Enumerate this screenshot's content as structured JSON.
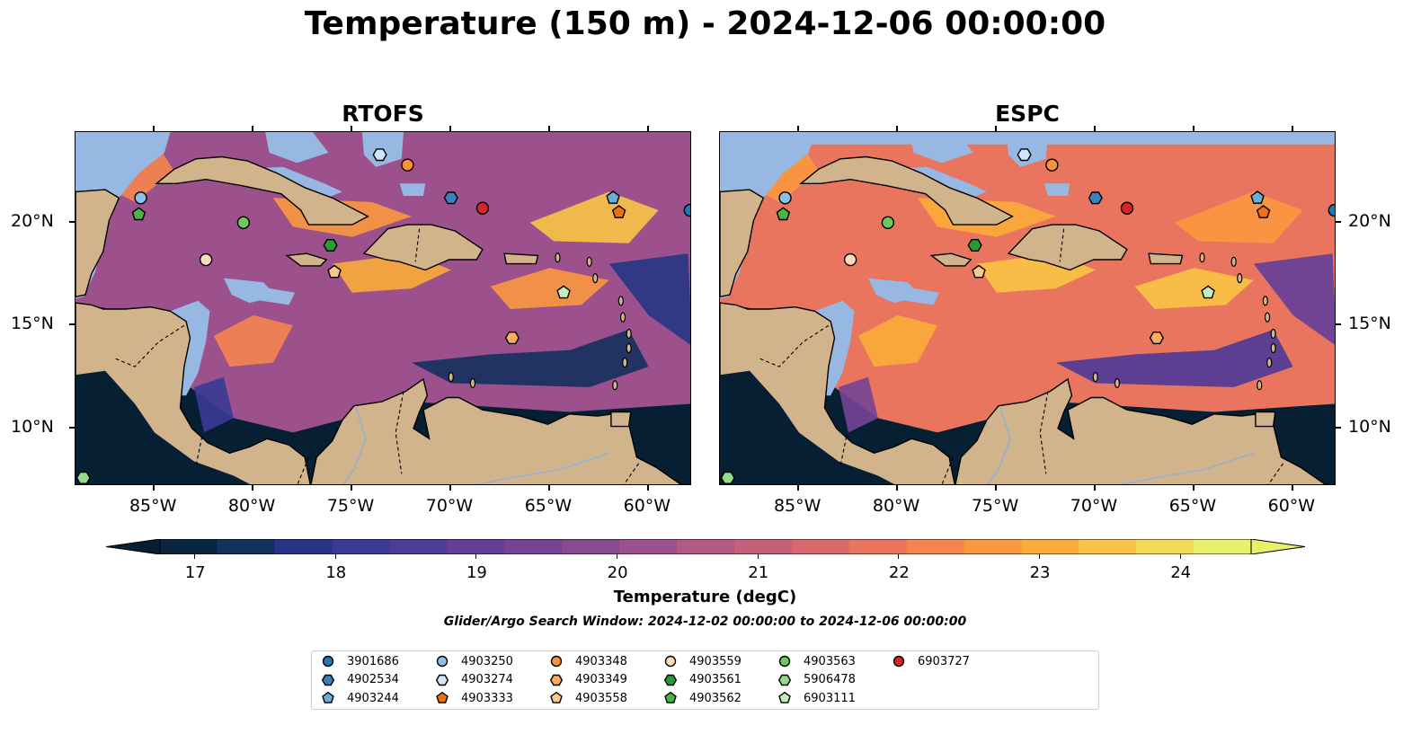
{
  "title": "Temperature (150 m) - 2024-12-06 00:00:00",
  "panels": [
    {
      "title": "RTOFS"
    },
    {
      "title": "ESPC"
    }
  ],
  "lon_labels": [
    "85°W",
    "80°W",
    "75°W",
    "70°W",
    "65°W",
    "60°W"
  ],
  "lat_labels": [
    "20°N",
    "15°N",
    "10°N"
  ],
  "colorbar": {
    "title": "Temperature (degC)",
    "tick_labels": [
      "17",
      "18",
      "19",
      "20",
      "21",
      "22",
      "23",
      "24"
    ],
    "min": 16.75,
    "max": 24.5,
    "extend": "both",
    "colors": [
      "#0a2540",
      "#14305e",
      "#263585",
      "#3a3a96",
      "#4d3a99",
      "#633f98",
      "#754496",
      "#884b92",
      "#9c518c",
      "#b25984",
      "#c6607a",
      "#d9686c",
      "#ea755f",
      "#f5854e",
      "#fa983f",
      "#fbac3a",
      "#f9c445",
      "#f3dc55",
      "#e9f06a"
    ]
  },
  "search_window": "Glider/Argo Search Window: 2024-12-02 00:00:00 to 2024-12-06 00:00:00",
  "legend": [
    {
      "label": "3901686",
      "marker": "circle",
      "color": "#1f77b4"
    },
    {
      "label": "4902534",
      "marker": "hexagon",
      "color": "#3a7fc0"
    },
    {
      "label": "4903244",
      "marker": "pentagon",
      "color": "#6aaed6"
    },
    {
      "label": "4903250",
      "marker": "circle",
      "color": "#8cc0e8"
    },
    {
      "label": "4903274",
      "marker": "hexagon",
      "color": "#cfe6f8"
    },
    {
      "label": "4903333",
      "marker": "pentagon",
      "color": "#f0700e"
    },
    {
      "label": "4903348",
      "marker": "circle",
      "color": "#f8923a"
    },
    {
      "label": "4903349",
      "marker": "hexagon",
      "color": "#fbab62"
    },
    {
      "label": "4903558",
      "marker": "pentagon",
      "color": "#fdc690"
    },
    {
      "label": "4903559",
      "marker": "circle",
      "color": "#fddcbc"
    },
    {
      "label": "4903561",
      "marker": "hexagon",
      "color": "#2a9a36"
    },
    {
      "label": "4903562",
      "marker": "pentagon",
      "color": "#49b443"
    },
    {
      "label": "4903563",
      "marker": "circle",
      "color": "#6dc862"
    },
    {
      "label": "5906478",
      "marker": "hexagon",
      "color": "#95d98a"
    },
    {
      "label": "6903111",
      "marker": "pentagon",
      "color": "#c4ecbd"
    },
    {
      "label": "6903727",
      "marker": "circle",
      "color": "#d62728"
    }
  ],
  "floats": [
    {
      "id": "4903250",
      "lon": -85.7,
      "lat": 21.2
    },
    {
      "id": "4903562",
      "lon": -85.8,
      "lat": 20.4
    },
    {
      "id": "4903563",
      "lon": -80.5,
      "lat": 20.0
    },
    {
      "id": "4903559",
      "lon": -82.4,
      "lat": 18.2
    },
    {
      "id": "4903561",
      "lon": -76.1,
      "lat": 18.9
    },
    {
      "id": "4903558",
      "lon": -75.9,
      "lat": 17.6
    },
    {
      "id": "4903274",
      "lon": -73.6,
      "lat": 23.3
    },
    {
      "id": "4903348",
      "lon": -72.2,
      "lat": 22.8
    },
    {
      "id": "4902534",
      "lon": -70.0,
      "lat": 21.2
    },
    {
      "id": "6903727",
      "lon": -68.4,
      "lat": 20.7
    },
    {
      "id": "6903111",
      "lon": -64.3,
      "lat": 16.6
    },
    {
      "id": "4903349",
      "lon": -66.9,
      "lat": 14.4
    },
    {
      "id": "4903244",
      "lon": -61.8,
      "lat": 21.2
    },
    {
      "id": "4903333",
      "lon": -61.5,
      "lat": 20.5
    },
    {
      "id": "3901686",
      "lon": -57.9,
      "lat": 20.6
    },
    {
      "id": "5906478",
      "lon": -88.6,
      "lat": 7.6
    }
  ]
}
